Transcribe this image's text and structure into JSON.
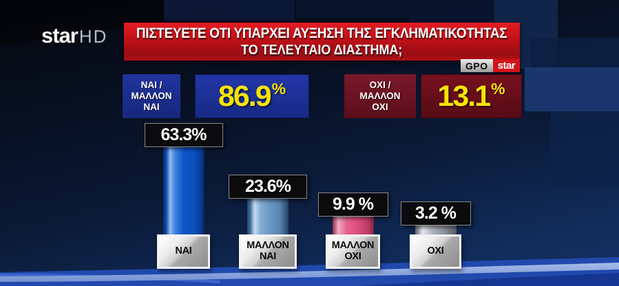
{
  "branding": {
    "logo": "star",
    "logo_suffix": "HD",
    "badge_pollster": "GPO",
    "badge_channel": "star"
  },
  "question": {
    "line1": "ΠΙΣΤΕΥΕΤΕ ΟΤΙ ΥΠΑΡΧΕΙ ΑΥΞΗΣΗ ΤΗΣ ΕΓΚΛΗΜΑΤΙΚΟΤΗΤΑΣ",
    "line2": "ΤΟ ΤΕΛΕΥΤΑΙΟ ΔΙΑΣΤΗΜΑ;"
  },
  "summary": {
    "yes": {
      "label": "ΝΑΙ /\nΜΑΛΛΟΝ\nΝΑΙ",
      "value": "86.9",
      "sign": "%"
    },
    "no": {
      "label": "ΟΧΙ /\nΜΑΛΛΟΝ\nΟΧΙ",
      "value": "13.1",
      "sign": "%"
    }
  },
  "chart_data": {
    "type": "bar",
    "title": "ΠΙΣΤΕΥΕΤΕ ΟΤΙ ΥΠΑΡΧΕΙ ΑΥΞΗΣΗ ΤΗΣ ΕΓΚΛΗΜΑΤΙΚΟΤΗΤΑΣ ΤΟ ΤΕΛΕΥΤΑΙΟ ΔΙΑΣΤΗΜΑ;",
    "categories": [
      "ΝΑΙ",
      "ΜΑΛΛΟΝ ΝΑΙ",
      "ΜΑΛΛΟΝ ΟΧΙ",
      "ΟΧΙ"
    ],
    "values": [
      63.3,
      23.6,
      9.9,
      3.2
    ],
    "value_labels": [
      "63.3%",
      "23.6%",
      "9.9 %",
      "3.2 %"
    ],
    "aggregates": {
      "yes_total": 86.9,
      "no_total": 13.1
    },
    "bar_colors": [
      "#0d54c8",
      "#6a98c4",
      "#dd4f7e",
      "#aab0ba"
    ],
    "ylim": [
      0,
      70
    ],
    "grid": false,
    "legend": false
  },
  "colors": {
    "banner_red": "#c31218",
    "summary_blue": "#1d2f99",
    "summary_dark_red": "#6b0f1e",
    "value_yellow": "#f6e400",
    "chip_black": "#0b0b0d",
    "pedestal_grey": "#c9c9c9",
    "stage_blue": "#2149ae",
    "stage_band_light": "#9fb5e6"
  }
}
